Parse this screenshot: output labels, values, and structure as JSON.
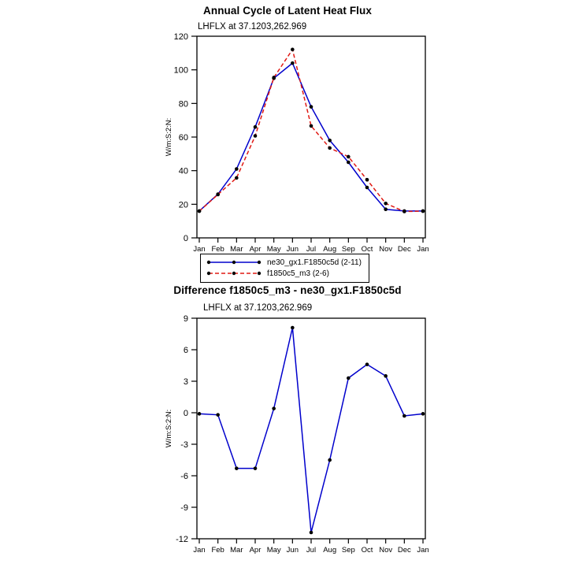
{
  "page": {
    "background": "#ffffff"
  },
  "legend": {
    "items": [
      {
        "label": "ne30_gx1.F1850c5d (2-11)",
        "line_color": "#0000cc",
        "line_style": "solid",
        "marker": "circle"
      },
      {
        "label": "f1850c5_m3 (2-6)",
        "line_color": "#e01a14",
        "line_style": "dashed",
        "marker": "circle"
      }
    ]
  },
  "chart_data": [
    {
      "type": "line",
      "title": "Annual Cycle of Latent Heat Flux",
      "subtitle": "LHFLX at 37.1203,262.969",
      "xlabel": "",
      "ylabel": "W/m:S:2:N:",
      "categories": [
        "Jan",
        "Feb",
        "Mar",
        "Apr",
        "May",
        "Jun",
        "Jul",
        "Aug",
        "Sep",
        "Oct",
        "Nov",
        "Dec",
        "Jan"
      ],
      "ylim": [
        0,
        120
      ],
      "yticks": [
        0,
        20,
        40,
        60,
        80,
        100,
        120
      ],
      "grid": false,
      "legend_position": "below",
      "series": [
        {
          "name": "ne30_gx1.F1850c5d (2-11)",
          "color": "#0000cc",
          "dash": "solid",
          "marker": "circle",
          "marker_color": "#000000",
          "values": [
            16,
            26,
            41,
            66,
            95,
            104,
            78,
            58,
            45,
            30,
            17,
            16,
            16
          ]
        },
        {
          "name": "f1850c5_m3 (2-6)",
          "color": "#e01a14",
          "dash": "dashed",
          "marker": "circle",
          "marker_color": "#000000",
          "values": [
            15.9,
            25.8,
            35.7,
            60.7,
            95.4,
            112.1,
            66.6,
            53.5,
            48.3,
            34.6,
            20.5,
            15.7,
            15.9
          ]
        }
      ]
    },
    {
      "type": "line",
      "title": "Difference f1850c5_m3 - ne30_gx1.F1850c5d",
      "subtitle": "LHFLX at 37.1203,262.969",
      "xlabel": "",
      "ylabel": "W/m:S:2:N:",
      "categories": [
        "Jan",
        "Feb",
        "Mar",
        "Apr",
        "May",
        "Jun",
        "Jul",
        "Aug",
        "Sep",
        "Oct",
        "Nov",
        "Dec",
        "Jan"
      ],
      "ylim": [
        -12,
        9
      ],
      "yticks": [
        -12,
        -9,
        -6,
        -3,
        0,
        3,
        6,
        9
      ],
      "grid": false,
      "legend_position": "none",
      "series": [
        {
          "name": "difference (f1850c5_m3 - ne30_gx1.F1850c5d)",
          "color": "#0000cc",
          "dash": "solid",
          "marker": "circle",
          "marker_color": "#000000",
          "values": [
            -0.1,
            -0.2,
            -5.3,
            -5.3,
            0.4,
            8.1,
            -11.4,
            -4.5,
            3.3,
            4.6,
            3.5,
            -0.3,
            -0.1
          ]
        }
      ]
    }
  ]
}
